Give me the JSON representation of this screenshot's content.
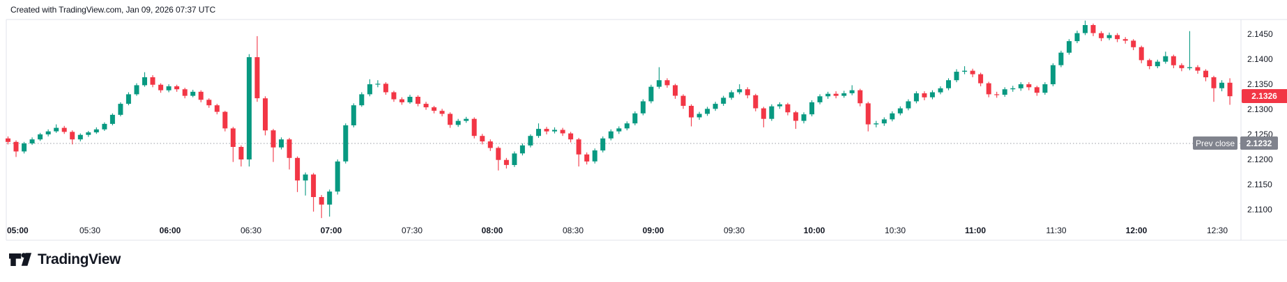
{
  "attribution": "Created with TradingView.com, Jan 09, 2026 07:37 UTC",
  "footer": {
    "logo_text": "TradingView"
  },
  "overlays": {
    "last_price_label": "2.1326",
    "prev_close_label": "Prev close",
    "prev_close_value_label": "2.1232"
  },
  "colors": {
    "up": "#089981",
    "down": "#f23645",
    "frame": "#e0e3eb",
    "prev_close_badge": "#80838d",
    "prev_close_dots": "#989ba3",
    "text": "#131722"
  },
  "chart_data": {
    "type": "candlestick",
    "start_time": "05:00",
    "interval_minutes": 3,
    "last_price": 2.1326,
    "prev_close": 2.1232,
    "up_color": "#089981",
    "down_color": "#f23645",
    "grid": "off",
    "legend_position": "none",
    "y_axis": {
      "min": 2.1085,
      "max": 2.148,
      "ticks": [
        "2.1450",
        "2.1400",
        "2.1350",
        "2.1300",
        "2.1250",
        "2.1200",
        "2.1150",
        "2.1100"
      ],
      "tick_values": [
        2.145,
        2.14,
        2.135,
        2.13,
        2.125,
        2.12,
        2.115,
        2.11
      ]
    },
    "x_axis": {
      "ticks": [
        {
          "label": "05:00",
          "major": true
        },
        {
          "label": "05:30",
          "major": false
        },
        {
          "label": "06:00",
          "major": true
        },
        {
          "label": "06:30",
          "major": false
        },
        {
          "label": "07:00",
          "major": true
        },
        {
          "label": "07:30",
          "major": false
        },
        {
          "label": "08:00",
          "major": true
        },
        {
          "label": "08:30",
          "major": false
        },
        {
          "label": "09:00",
          "major": true
        },
        {
          "label": "09:30",
          "major": false
        },
        {
          "label": "10:00",
          "major": true
        },
        {
          "label": "10:30",
          "major": false
        },
        {
          "label": "11:00",
          "major": true
        },
        {
          "label": "11:30",
          "major": false
        },
        {
          "label": "12:00",
          "major": true
        },
        {
          "label": "12:30",
          "major": false
        }
      ]
    },
    "candles": [
      [
        2.1242,
        2.1246,
        2.123,
        2.1235
      ],
      [
        2.1235,
        2.1238,
        2.1205,
        2.1216
      ],
      [
        2.1216,
        2.1235,
        2.1212,
        2.1232
      ],
      [
        2.1232,
        2.1244,
        2.1229,
        2.124
      ],
      [
        2.124,
        2.1253,
        2.1237,
        2.125
      ],
      [
        2.125,
        2.126,
        2.1246,
        2.1256
      ],
      [
        2.1256,
        2.127,
        2.1253,
        2.1263
      ],
      [
        2.1263,
        2.1267,
        2.1251,
        2.1255
      ],
      [
        2.1255,
        2.1258,
        2.123,
        2.124
      ],
      [
        2.124,
        2.1252,
        2.1236,
        2.1249
      ],
      [
        2.1249,
        2.1257,
        2.1245,
        2.1254
      ],
      [
        2.1254,
        2.1264,
        2.1251,
        2.126
      ],
      [
        2.126,
        2.1274,
        2.1257,
        2.1271
      ],
      [
        2.1271,
        2.1292,
        2.1268,
        2.1289
      ],
      [
        2.1289,
        2.1314,
        2.1286,
        2.1311
      ],
      [
        2.1311,
        2.1334,
        2.1308,
        2.133
      ],
      [
        2.133,
        2.1352,
        2.1327,
        2.1348
      ],
      [
        2.1348,
        2.1374,
        2.1345,
        2.1364
      ],
      [
        2.1364,
        2.1368,
        2.1344,
        2.1349
      ],
      [
        2.1349,
        2.1352,
        2.1333,
        2.1338
      ],
      [
        2.1338,
        2.135,
        2.1334,
        2.1346
      ],
      [
        2.1346,
        2.1349,
        2.1335,
        2.134
      ],
      [
        2.134,
        2.1343,
        2.1322,
        2.1327
      ],
      [
        2.1327,
        2.1339,
        2.1324,
        2.1335
      ],
      [
        2.1335,
        2.1338,
        2.1314,
        2.1319
      ],
      [
        2.1319,
        2.1322,
        2.1303,
        2.1308
      ],
      [
        2.1308,
        2.1311,
        2.129,
        2.1295
      ],
      [
        2.1295,
        2.1297,
        2.1256,
        2.1262
      ],
      [
        2.1262,
        2.1265,
        2.1195,
        2.1225
      ],
      [
        2.1225,
        2.1228,
        2.1186,
        2.12
      ],
      [
        2.12,
        2.141,
        2.1186,
        2.1404
      ],
      [
        2.1404,
        2.1446,
        2.1315,
        2.1322
      ],
      [
        2.1322,
        2.1326,
        2.1248,
        2.1258
      ],
      [
        2.1258,
        2.1261,
        2.1195,
        2.1224
      ],
      [
        2.1224,
        2.1244,
        2.122,
        2.124
      ],
      [
        2.124,
        2.1243,
        2.118,
        2.1203
      ],
      [
        2.1203,
        2.1206,
        2.1135,
        2.1158
      ],
      [
        2.1158,
        2.1174,
        2.1128,
        2.117
      ],
      [
        2.117,
        2.1173,
        2.1096,
        2.1125
      ],
      [
        2.1125,
        2.1129,
        2.1083,
        2.111
      ],
      [
        2.111,
        2.114,
        2.1086,
        2.1136
      ],
      [
        2.1136,
        2.12,
        2.113,
        2.1196
      ],
      [
        2.1196,
        2.1272,
        2.1192,
        2.1268
      ],
      [
        2.1268,
        2.1312,
        2.1264,
        2.1308
      ],
      [
        2.1308,
        2.1334,
        2.1305,
        2.133
      ],
      [
        2.133,
        2.136,
        2.1326,
        2.135
      ],
      [
        2.135,
        2.1358,
        2.1344,
        2.1351
      ],
      [
        2.1351,
        2.1354,
        2.1329,
        2.1334
      ],
      [
        2.1334,
        2.1337,
        2.1315,
        2.132
      ],
      [
        2.132,
        2.1324,
        2.1309,
        2.1314
      ],
      [
        2.1314,
        2.1329,
        2.1311,
        2.1325
      ],
      [
        2.1325,
        2.1328,
        2.1306,
        2.1311
      ],
      [
        2.1311,
        2.1315,
        2.1299,
        2.1304
      ],
      [
        2.1304,
        2.1307,
        2.1292,
        2.1297
      ],
      [
        2.1297,
        2.1301,
        2.1286,
        2.1291
      ],
      [
        2.1291,
        2.1294,
        2.1263,
        2.1269
      ],
      [
        2.1269,
        2.1281,
        2.1265,
        2.1277
      ],
      [
        2.1277,
        2.1285,
        2.1273,
        2.1281
      ],
      [
        2.1281,
        2.1284,
        2.1242,
        2.1247
      ],
      [
        2.1247,
        2.1251,
        2.123,
        2.1236
      ],
      [
        2.1236,
        2.124,
        2.1217,
        2.1223
      ],
      [
        2.1223,
        2.1226,
        2.1178,
        2.1199
      ],
      [
        2.1199,
        2.1203,
        2.1182,
        2.1189
      ],
      [
        2.1189,
        2.1216,
        2.1185,
        2.1212
      ],
      [
        2.1212,
        2.1232,
        2.1208,
        2.1228
      ],
      [
        2.1228,
        2.125,
        2.1224,
        2.1247
      ],
      [
        2.1247,
        2.1272,
        2.1243,
        2.1261
      ],
      [
        2.1261,
        2.1265,
        2.125,
        2.1256
      ],
      [
        2.1256,
        2.1264,
        2.1252,
        2.1259
      ],
      [
        2.1259,
        2.1263,
        2.1247,
        2.1252
      ],
      [
        2.1252,
        2.1255,
        2.1234,
        2.124
      ],
      [
        2.124,
        2.1243,
        2.1186,
        2.121
      ],
      [
        2.121,
        2.1214,
        2.119,
        2.1196
      ],
      [
        2.1196,
        2.1222,
        2.1192,
        2.1218
      ],
      [
        2.1218,
        2.1246,
        2.1214,
        2.1242
      ],
      [
        2.1242,
        2.126,
        2.1238,
        2.1256
      ],
      [
        2.1256,
        2.1266,
        2.1251,
        2.1262
      ],
      [
        2.1262,
        2.1276,
        2.1258,
        2.1272
      ],
      [
        2.1272,
        2.1296,
        2.1268,
        2.1292
      ],
      [
        2.1292,
        2.132,
        2.1288,
        2.1316
      ],
      [
        2.1316,
        2.1349,
        2.1312,
        2.1345
      ],
      [
        2.1345,
        2.1384,
        2.1341,
        2.1358
      ],
      [
        2.1358,
        2.1362,
        2.1343,
        2.1348
      ],
      [
        2.1348,
        2.1351,
        2.1321,
        2.1327
      ],
      [
        2.1327,
        2.133,
        2.1301,
        2.1307
      ],
      [
        2.1307,
        2.131,
        2.1266,
        2.1284
      ],
      [
        2.1284,
        2.1295,
        2.1279,
        2.1291
      ],
      [
        2.1291,
        2.1305,
        2.1287,
        2.1301
      ],
      [
        2.1301,
        2.1315,
        2.1297,
        2.1311
      ],
      [
        2.1311,
        2.1327,
        2.1307,
        2.1323
      ],
      [
        2.1323,
        2.1338,
        2.1319,
        2.1334
      ],
      [
        2.1334,
        2.135,
        2.133,
        2.134
      ],
      [
        2.134,
        2.1344,
        2.1322,
        2.1328
      ],
      [
        2.1328,
        2.1331,
        2.1296,
        2.1302
      ],
      [
        2.1302,
        2.1305,
        2.1264,
        2.1281
      ],
      [
        2.1281,
        2.131,
        2.1277,
        2.1306
      ],
      [
        2.1306,
        2.1314,
        2.1301,
        2.131
      ],
      [
        2.131,
        2.1313,
        2.1288,
        2.1294
      ],
      [
        2.1294,
        2.1297,
        2.1261,
        2.1277
      ],
      [
        2.1277,
        2.1294,
        2.1272,
        2.129
      ],
      [
        2.129,
        2.1318,
        2.1286,
        2.1314
      ],
      [
        2.1314,
        2.133,
        2.131,
        2.1326
      ],
      [
        2.1326,
        2.1335,
        2.1321,
        2.1331
      ],
      [
        2.1331,
        2.1336,
        2.1322,
        2.1327
      ],
      [
        2.1327,
        2.1337,
        2.1323,
        2.1332
      ],
      [
        2.1332,
        2.1348,
        2.1328,
        2.1338
      ],
      [
        2.1338,
        2.1341,
        2.1306,
        2.1312
      ],
      [
        2.1312,
        2.1315,
        2.1256,
        2.127
      ],
      [
        2.127,
        2.1277,
        2.1264,
        2.1272
      ],
      [
        2.1272,
        2.1284,
        2.1267,
        2.128
      ],
      [
        2.128,
        2.1296,
        2.1276,
        2.1292
      ],
      [
        2.1292,
        2.1306,
        2.1288,
        2.1302
      ],
      [
        2.1302,
        2.132,
        2.1298,
        2.1316
      ],
      [
        2.1316,
        2.1336,
        2.1312,
        2.1332
      ],
      [
        2.1332,
        2.1336,
        2.1318,
        2.1324
      ],
      [
        2.1324,
        2.1338,
        2.132,
        2.1334
      ],
      [
        2.1334,
        2.1346,
        2.133,
        2.1342
      ],
      [
        2.1342,
        2.1362,
        2.1338,
        2.1358
      ],
      [
        2.1358,
        2.138,
        2.1354,
        2.1375
      ],
      [
        2.1375,
        2.1386,
        2.137,
        2.1377
      ],
      [
        2.1377,
        2.1381,
        2.1364,
        2.137
      ],
      [
        2.137,
        2.1373,
        2.1346,
        2.1352
      ],
      [
        2.1352,
        2.1355,
        2.1324,
        2.133
      ],
      [
        2.133,
        2.1335,
        2.1323,
        2.1329
      ],
      [
        2.1329,
        2.1344,
        2.1325,
        2.134
      ],
      [
        2.134,
        2.1347,
        2.1335,
        2.1342
      ],
      [
        2.1342,
        2.1354,
        2.1337,
        2.135
      ],
      [
        2.135,
        2.1354,
        2.1338,
        2.1344
      ],
      [
        2.1344,
        2.1347,
        2.1327,
        2.1333
      ],
      [
        2.1333,
        2.1354,
        2.1329,
        2.135
      ],
      [
        2.135,
        2.1392,
        2.1346,
        2.1388
      ],
      [
        2.1388,
        2.1417,
        2.1384,
        2.1413
      ],
      [
        2.1413,
        2.144,
        2.1409,
        2.1436
      ],
      [
        2.1436,
        2.1457,
        2.1432,
        2.1452
      ],
      [
        2.1452,
        2.1477,
        2.1448,
        2.1468
      ],
      [
        2.1468,
        2.1471,
        2.1446,
        2.1452
      ],
      [
        2.1452,
        2.1456,
        2.1436,
        2.1442
      ],
      [
        2.1442,
        2.1453,
        2.1438,
        2.1448
      ],
      [
        2.1448,
        2.1452,
        2.1434,
        2.144
      ],
      [
        2.144,
        2.1444,
        2.1431,
        2.1437
      ],
      [
        2.1437,
        2.144,
        2.1418,
        2.1424
      ],
      [
        2.1424,
        2.1427,
        2.1392,
        2.1398
      ],
      [
        2.1398,
        2.1401,
        2.138,
        2.1386
      ],
      [
        2.1386,
        2.1399,
        2.1382,
        2.1395
      ],
      [
        2.1395,
        2.1415,
        2.1391,
        2.1406
      ],
      [
        2.1406,
        2.1409,
        2.1382,
        2.1388
      ],
      [
        2.1388,
        2.1392,
        2.1376,
        2.1382
      ],
      [
        2.1382,
        2.1456,
        2.1378,
        2.1384
      ],
      [
        2.1384,
        2.1388,
        2.1371,
        2.1377
      ],
      [
        2.1377,
        2.138,
        2.1356,
        2.1364
      ],
      [
        2.1364,
        2.1367,
        2.1315,
        2.1342
      ],
      [
        2.1342,
        2.1358,
        2.1336,
        2.1353
      ],
      [
        2.1353,
        2.1362,
        2.1309,
        2.1326
      ]
    ]
  }
}
